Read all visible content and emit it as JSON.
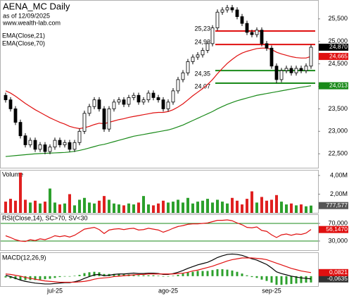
{
  "chart_data": [
    {
      "type": "candlestick",
      "title": "AENA_MC Daily",
      "subtitle": "as of 12/09/2025",
      "source": "www.wealth-lab.com",
      "categories": [
        null,
        null,
        null,
        null,
        null,
        null,
        null,
        null,
        null,
        null,
        "jul-25",
        null,
        null,
        null,
        null,
        null,
        null,
        null,
        null,
        null,
        null,
        null,
        null,
        null,
        null,
        null,
        null,
        null,
        null,
        null,
        null,
        null,
        null,
        "ago-25",
        null,
        null,
        null,
        null,
        null,
        null,
        null,
        null,
        null,
        null,
        null,
        null,
        null,
        null,
        null,
        null,
        null,
        null,
        null,
        null,
        "sep-25",
        null,
        null,
        null,
        null,
        null,
        null,
        null,
        null
      ],
      "open": [
        23800,
        23700,
        23500,
        23200,
        22900,
        22700,
        22800,
        22600,
        22700,
        22550,
        22650,
        22800,
        22700,
        22750,
        22600,
        22750,
        23000,
        23400,
        23550,
        23700,
        23500,
        23050,
        23500,
        23650,
        23700,
        23600,
        23750,
        23800,
        23650,
        23700,
        23850,
        23750,
        23700,
        23500,
        23650,
        23900,
        24150,
        24300,
        24550,
        24650,
        24700,
        24800,
        24950,
        25300,
        25650,
        25700,
        25750,
        25700,
        25550,
        25400,
        25200,
        25150,
        25250,
        24950,
        24850,
        24450,
        24150,
        24350,
        24400,
        24300,
        24400,
        24350,
        24450
      ],
      "high": [
        23860,
        23760,
        23560,
        23260,
        22960,
        22860,
        22860,
        22760,
        22760,
        22710,
        22860,
        22860,
        22810,
        22810,
        22810,
        23060,
        23460,
        23610,
        23760,
        23760,
        23560,
        23560,
        23710,
        23760,
        23760,
        23810,
        23860,
        23860,
        23760,
        23910,
        23910,
        23810,
        23760,
        23710,
        23960,
        24210,
        24360,
        24610,
        24710,
        24760,
        24860,
        25010,
        25360,
        25710,
        25760,
        25810,
        25810,
        25760,
        25610,
        25460,
        25260,
        25310,
        25310,
        25010,
        24910,
        24510,
        24410,
        24460,
        24460,
        24460,
        24460,
        24510,
        24930
      ],
      "low": [
        23640,
        23440,
        23140,
        22840,
        22640,
        22640,
        22540,
        22540,
        22490,
        22490,
        22590,
        22640,
        22640,
        22540,
        22540,
        22690,
        22940,
        23340,
        23490,
        23440,
        22990,
        22990,
        23440,
        23590,
        23540,
        23540,
        23690,
        23590,
        23590,
        23640,
        23690,
        23640,
        23440,
        23440,
        23590,
        23840,
        24090,
        24240,
        24490,
        24590,
        24640,
        24740,
        24890,
        25240,
        25590,
        25640,
        25640,
        25490,
        25340,
        25140,
        25090,
        25090,
        24890,
        24790,
        24390,
        24070,
        24090,
        24290,
        24240,
        24240,
        24290,
        24290,
        24390
      ],
      "close": [
        23700,
        23500,
        23200,
        22900,
        22700,
        22800,
        22600,
        22700,
        22550,
        22650,
        22800,
        22700,
        22750,
        22600,
        22750,
        23000,
        23400,
        23550,
        23700,
        23500,
        23050,
        23500,
        23650,
        23700,
        23600,
        23750,
        23800,
        23650,
        23700,
        23850,
        23750,
        23700,
        23500,
        23650,
        23900,
        24150,
        24300,
        24550,
        24650,
        24700,
        24800,
        24950,
        25300,
        25650,
        25700,
        25750,
        25700,
        25550,
        25400,
        25200,
        25150,
        25250,
        24950,
        24850,
        24450,
        24150,
        24350,
        24400,
        24300,
        24400,
        24350,
        24450,
        24870
      ],
      "close_label": "24,870",
      "up_color": "#ffffff",
      "down_color": "#000000",
      "ylim": [
        22190,
        25920
      ],
      "yticks": [
        {
          "value": 22500,
          "label": "22,500"
        },
        {
          "value": 23000,
          "label": "23,000"
        },
        {
          "value": 23500,
          "label": "23,500"
        },
        {
          "value": 24000,
          "label": "24,000"
        },
        {
          "value": 24500,
          "label": "24,500"
        },
        {
          "value": 25000,
          "label": "25,000"
        },
        {
          "value": 25500,
          "label": "25,500"
        }
      ],
      "series": [
        {
          "name": "EMA(Close,21)",
          "color": "#e01010",
          "last_label": "24,665",
          "values": [
            23900,
            23850,
            23780,
            23700,
            23620,
            23550,
            23480,
            23420,
            23360,
            23300,
            23250,
            23200,
            23160,
            23110,
            23080,
            23060,
            23080,
            23110,
            23150,
            23180,
            23170,
            23200,
            23230,
            23260,
            23280,
            23310,
            23330,
            23350,
            23370,
            23390,
            23410,
            23420,
            23420,
            23440,
            23480,
            23540,
            23610,
            23700,
            23790,
            23870,
            23950,
            24040,
            24150,
            24280,
            24400,
            24510,
            24600,
            24680,
            24740,
            24780,
            24810,
            24840,
            24850,
            24850,
            24820,
            24760,
            24720,
            24690,
            24660,
            24640,
            24630,
            24630,
            24665
          ]
        },
        {
          "name": "EMA(Close,70)",
          "color": "#1a8a1a",
          "last_label": "24,013",
          "values": [
            22440,
            22450,
            22460,
            22470,
            22480,
            22490,
            22500,
            22505,
            22510,
            22515,
            22520,
            22525,
            22530,
            22540,
            22555,
            22575,
            22600,
            22630,
            22660,
            22690,
            22710,
            22740,
            22770,
            22800,
            22830,
            22860,
            22890,
            22910,
            22930,
            22950,
            22970,
            22990,
            23010,
            23030,
            23060,
            23100,
            23140,
            23190,
            23240,
            23290,
            23340,
            23390,
            23440,
            23500,
            23550,
            23600,
            23640,
            23680,
            23710,
            23740,
            23770,
            23800,
            23820,
            23840,
            23860,
            23880,
            23900,
            23920,
            23940,
            23960,
            23980,
            23995,
            24013
          ]
        }
      ],
      "levels": [
        {
          "value": 25230,
          "label": "25,23",
          "color": "#e01010"
        },
        {
          "value": 24930,
          "label": "24,93",
          "color": "#e01010"
        },
        {
          "value": 24350,
          "label": "24,35",
          "color": "#1a8a1a"
        },
        {
          "value": 24070,
          "label": "24,07",
          "color": "#1a8a1a"
        }
      ]
    },
    {
      "type": "bar",
      "title": "Volume",
      "up_color": "#2ca02c",
      "down_color": "#e02020",
      "last_label": "777,577",
      "values": [
        1200000,
        1500000,
        1300000,
        4300000,
        1400000,
        1100000,
        1300000,
        1000000,
        1200000,
        2600000,
        1100000,
        900000,
        1000000,
        2000000,
        800000,
        1400000,
        1600000,
        1100000,
        1000000,
        1300000,
        1800000,
        1400000,
        1000000,
        900000,
        800000,
        1000000,
        900000,
        1100000,
        1800000,
        900000,
        800000,
        1000000,
        1300000,
        1100000,
        1200000,
        1400000,
        1100000,
        1600000,
        1000000,
        1200000,
        1300000,
        1500000,
        1100000,
        1400000,
        1200000,
        1000000,
        1600000,
        1300000,
        900000,
        1500000,
        2300000,
        1100000,
        1700000,
        1300000,
        1400000,
        1900000,
        1200000,
        900000,
        1000000,
        800000,
        900000,
        700000,
        777577
      ],
      "ylim": [
        0,
        4600000
      ],
      "yticks": [
        {
          "value": 2000000,
          "label": "2,00M"
        },
        {
          "value": 4000000,
          "label": "4,00M"
        }
      ]
    },
    {
      "type": "line",
      "title": "RSI(Close,14), SC>70, SV<30",
      "series": [
        {
          "color": "#e01010",
          "last_label": "56,1470",
          "values": [
            42,
            38,
            33,
            30,
            29,
            33,
            31,
            35,
            33,
            37,
            42,
            40,
            42,
            39,
            43,
            50,
            57,
            59,
            61,
            56,
            47,
            55,
            57,
            58,
            56,
            58,
            59,
            55,
            56,
            59,
            57,
            55,
            50,
            54,
            59,
            63,
            65,
            68,
            69,
            69,
            70,
            71,
            74,
            77,
            77,
            78,
            76,
            71,
            67,
            61,
            60,
            62,
            54,
            52,
            44,
            38,
            44,
            46,
            43,
            46,
            45,
            48,
            56.147
          ]
        }
      ],
      "ylim": [
        9.2,
        90.8
      ],
      "yticks": [
        {
          "value": 30,
          "label": "30,000"
        },
        {
          "value": 70,
          "label": "70,000"
        }
      ]
    },
    {
      "type": "line",
      "title": "MACD(12,26,9)",
      "series": [
        {
          "color": "#000000",
          "last_label": "-0,0635",
          "values": [
            0.02,
            -0.01,
            -0.05,
            -0.09,
            -0.12,
            -0.14,
            -0.16,
            -0.17,
            -0.18,
            -0.18,
            -0.17,
            -0.16,
            -0.15,
            -0.15,
            -0.13,
            -0.1,
            -0.05,
            -0.01,
            0.03,
            0.04,
            0.01,
            0.02,
            0.04,
            0.05,
            0.05,
            0.06,
            0.07,
            0.06,
            0.06,
            0.07,
            0.07,
            0.06,
            0.04,
            0.04,
            0.06,
            0.09,
            0.13,
            0.18,
            0.22,
            0.26,
            0.29,
            0.32,
            0.37,
            0.43,
            0.47,
            0.5,
            0.51,
            0.5,
            0.48,
            0.44,
            0.4,
            0.37,
            0.32,
            0.27,
            0.19,
            0.1,
            0.06,
            0.03,
            0.0,
            -0.02,
            -0.04,
            -0.05,
            -0.0635
          ]
        },
        {
          "color": "#e01010",
          "last_label": "0,0821",
          "values": [
            0.05,
            0.04,
            0.02,
            0.0,
            -0.03,
            -0.05,
            -0.07,
            -0.09,
            -0.11,
            -0.12,
            -0.13,
            -0.14,
            -0.14,
            -0.14,
            -0.14,
            -0.13,
            -0.12,
            -0.1,
            -0.07,
            -0.05,
            -0.04,
            -0.03,
            -0.01,
            0.0,
            0.01,
            0.02,
            0.03,
            0.04,
            0.04,
            0.05,
            0.05,
            0.05,
            0.05,
            0.05,
            0.05,
            0.06,
            0.07,
            0.09,
            0.12,
            0.14,
            0.17,
            0.2,
            0.23,
            0.27,
            0.31,
            0.35,
            0.38,
            0.4,
            0.42,
            0.42,
            0.42,
            0.41,
            0.4,
            0.38,
            0.34,
            0.3,
            0.26,
            0.22,
            0.18,
            0.15,
            0.12,
            0.1,
            0.0821
          ]
        }
      ],
      "histogram": {
        "color": "#2ca02c",
        "values": [
          -0.03,
          -0.05,
          -0.07,
          -0.09,
          -0.09,
          -0.09,
          -0.09,
          -0.08,
          -0.07,
          -0.06,
          -0.04,
          -0.02,
          -0.01,
          -0.01,
          0.01,
          0.03,
          0.07,
          0.09,
          0.1,
          0.09,
          0.05,
          0.05,
          0.05,
          0.05,
          0.04,
          0.04,
          0.04,
          0.02,
          0.02,
          0.02,
          0.02,
          0.01,
          -0.01,
          -0.01,
          0.01,
          0.03,
          0.06,
          0.09,
          0.1,
          0.12,
          0.12,
          0.12,
          0.14,
          0.16,
          0.16,
          0.15,
          0.13,
          0.1,
          0.06,
          0.02,
          -0.02,
          -0.04,
          -0.08,
          -0.11,
          -0.15,
          -0.2,
          -0.2,
          -0.19,
          -0.18,
          -0.17,
          -0.16,
          -0.15,
          -0.1456
        ]
      },
      "ylim": [
        -0.23,
        0.55
      ]
    }
  ]
}
